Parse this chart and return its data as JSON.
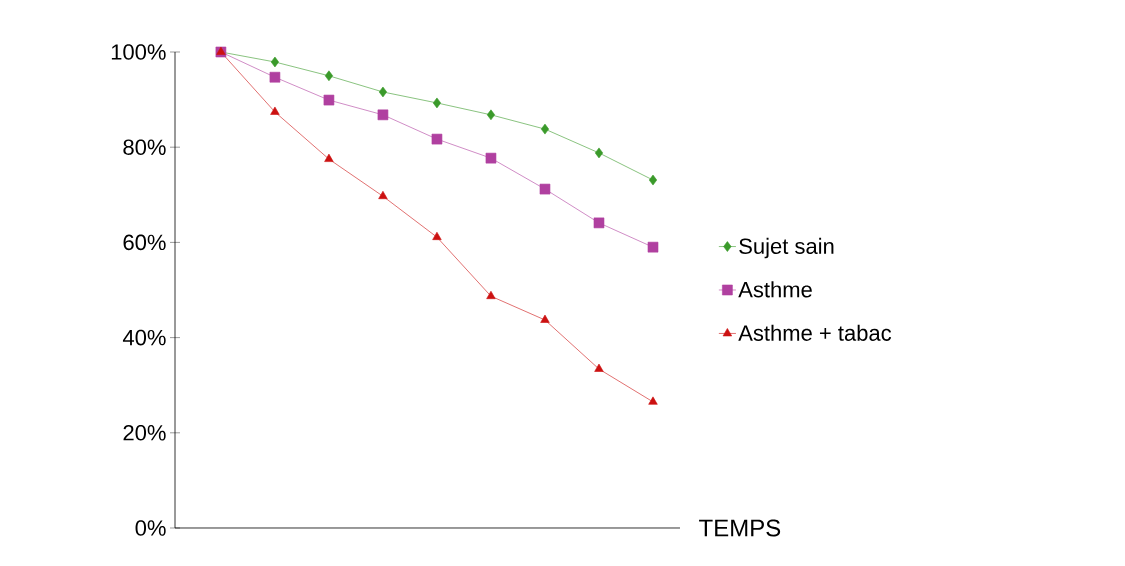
{
  "chart_data": {
    "type": "line",
    "xlabel": "TEMPS",
    "categories": [
      null,
      null,
      null,
      null,
      null,
      null,
      null,
      null,
      null
    ],
    "series": [
      {
        "name": "Sujet sain",
        "color": "#3a9a2a",
        "marker": "diamond",
        "values": [
          100,
          97.9,
          95,
          91.6,
          89.3,
          86.8,
          83.8,
          78.8,
          73.1
        ]
      },
      {
        "name": "Asthme",
        "color": "#b040a0",
        "marker": "square",
        "values": [
          100,
          94.7,
          89.9,
          86.8,
          81.7,
          77.7,
          71.2,
          64.1,
          59
        ]
      },
      {
        "name": "Asthme + tabac",
        "color": "#cc1111",
        "marker": "triangle",
        "values": [
          100,
          87.4,
          77.5,
          69.7,
          61.1,
          48.7,
          43.7,
          33.4,
          26.5
        ]
      }
    ],
    "ylim": [
      0,
      100
    ],
    "yticks": [
      {
        "value": 0,
        "label": "0%"
      },
      {
        "value": 20,
        "label": "20%"
      },
      {
        "value": 40,
        "label": "40%"
      },
      {
        "value": 60,
        "label": "60%"
      },
      {
        "value": 80,
        "label": "80%"
      },
      {
        "value": 100,
        "label": "100%"
      }
    ],
    "grid": false,
    "legend": "right",
    "tick_labels": "y",
    "line_style": "solid"
  }
}
